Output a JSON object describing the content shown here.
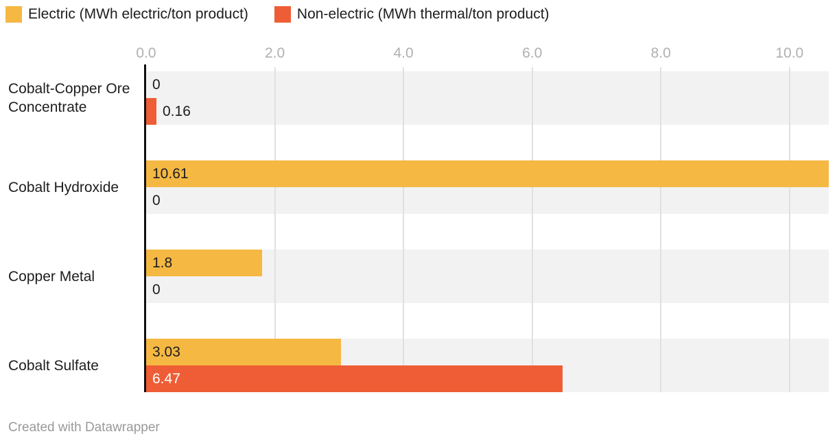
{
  "legend": {
    "items": [
      {
        "label": "Electric (MWh electric/ton product)",
        "color": "#f5b843"
      },
      {
        "label": "Non-electric (MWh thermal/ton product)",
        "color": "#ee5d35"
      }
    ]
  },
  "chart_data": {
    "type": "bar",
    "orientation": "horizontal",
    "categories": [
      "Cobalt-Copper Ore Concentrate",
      "Cobalt Hydroxide",
      "Copper Metal",
      "Cobalt Sulfate"
    ],
    "series": [
      {
        "name": "Electric (MWh electric/ton product)",
        "color": "#f5b843",
        "values": [
          0,
          10.61,
          1.8,
          3.03
        ],
        "labels": [
          "0",
          "10.61",
          "1.8",
          "3.03"
        ],
        "inside_label_color": "#1d1d1d"
      },
      {
        "name": "Non-electric (MWh thermal/ton product)",
        "color": "#ee5d35",
        "values": [
          0.16,
          0,
          0,
          6.47
        ],
        "labels": [
          "0.16",
          "0",
          "0",
          "6.47"
        ],
        "inside_label_color": "#ffffff"
      }
    ],
    "xlim": [
      0,
      10.61
    ],
    "x_ticks": [
      "0.0",
      "2.0",
      "4.0",
      "6.0",
      "8.0",
      "10.0"
    ],
    "x_tick_values": [
      0,
      2,
      4,
      6,
      8,
      10
    ],
    "grid": true,
    "legend_position": "top",
    "row_background_color": "#f2f2f2",
    "gridline_color": "#e0e0e0",
    "axis_color": "#0f0f0f",
    "tick_label_color": "#b0b0b0",
    "outside_label_color": "#1d1d1d"
  },
  "footer": {
    "credit": "Created with Datawrapper"
  }
}
